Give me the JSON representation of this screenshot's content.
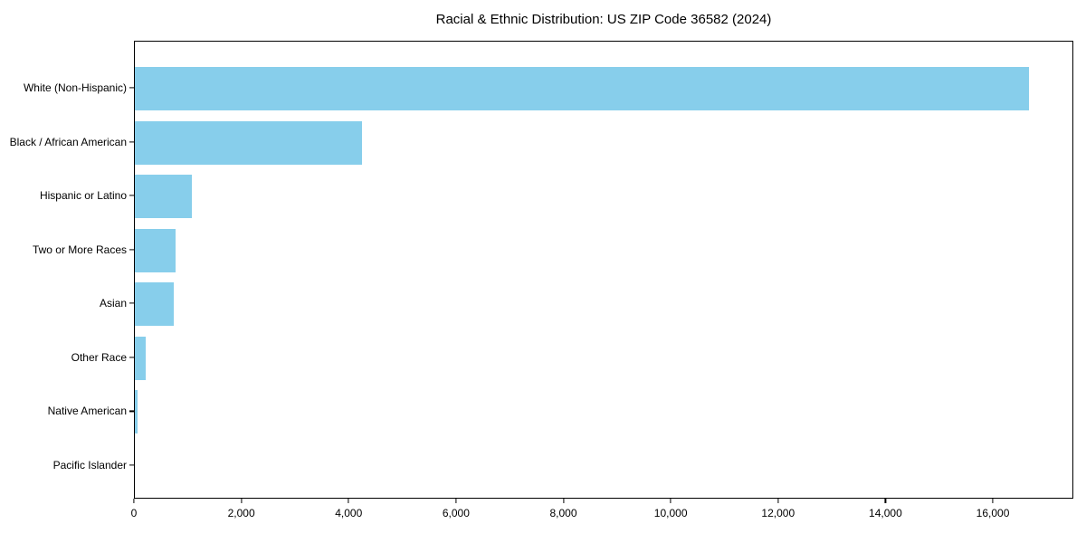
{
  "title": "Racial & Ethnic Distribution: US ZIP Code 36582 (2024)",
  "chart_data": {
    "type": "bar",
    "orientation": "horizontal",
    "title": "Racial & Ethnic Distribution: US ZIP Code 36582 (2024)",
    "xlabel": "",
    "ylabel": "",
    "categories": [
      "White (Non-Hispanic)",
      "Black / African American",
      "Hispanic or Latino",
      "Two or More Races",
      "Asian",
      "Other Race",
      "Native American",
      "Pacific Islander"
    ],
    "values": [
      16650,
      4230,
      1060,
      760,
      730,
      200,
      50,
      0
    ],
    "xlim": [
      0,
      17500
    ],
    "x_ticks": [
      0,
      2000,
      4000,
      6000,
      8000,
      10000,
      12000,
      14000,
      16000
    ],
    "x_tick_labels": [
      "0",
      "2,000",
      "4,000",
      "6,000",
      "8,000",
      "10,000",
      "12,000",
      "14,000",
      "16,000"
    ],
    "bar_color": "#87CEEB",
    "frame_color": "#000000",
    "grid": false,
    "legend": null
  }
}
